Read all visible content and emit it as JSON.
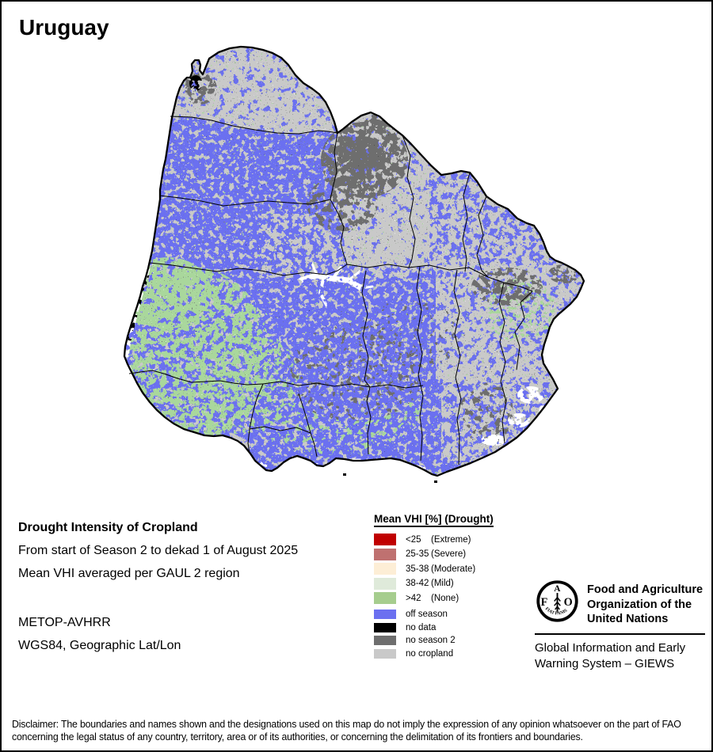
{
  "title": "Uruguay",
  "info": {
    "heading": "Drought Intensity of Cropland",
    "period": "From start of Season 2 to dekad 1 of August 2025",
    "aggregation": "Mean VHI averaged per GAUL 2 region",
    "sensor": "METOP-AVHRR",
    "projection": "WGS84, Geographic Lat/Lon"
  },
  "legend": {
    "title": "Mean VHI [%] (Drought)",
    "drought_classes": [
      {
        "range": "<25",
        "label": "(Extreme)",
        "color": "#c00000"
      },
      {
        "range": "25-35",
        "label": "(Severe)",
        "color": "#bf7170"
      },
      {
        "range": "35-38",
        "label": "(Moderate)",
        "color": "#fdeed6"
      },
      {
        "range": "38-42",
        "label": "(Mild)",
        "color": "#dfeada"
      },
      {
        "range": ">42",
        "label": "(None)",
        "color": "#a6cd8e"
      }
    ],
    "season_classes": [
      {
        "label": "off season",
        "color": "#6b70f0"
      },
      {
        "label": "no data",
        "color": "#000000"
      },
      {
        "label": "no season 2",
        "color": "#6e6e6e"
      },
      {
        "label": "no cropland",
        "color": "#c9c9c9"
      }
    ]
  },
  "fao": {
    "org_name_lines": [
      "Food and Agriculture",
      "Organization of the",
      "United Nations"
    ],
    "giews_lines": [
      "Global Information and Early",
      "Warning System – GIEWS"
    ],
    "logo": {
      "f": "F",
      "a": "A",
      "o": "O",
      "motto": "FIAT PANIS"
    }
  },
  "disclaimer": {
    "line1": "Disclaimer: The boundaries and names shown and the designations used on this map do not imply the expression of any opinion whatsoever on the part of FAO",
    "line2": "concerning the legal status of any country, territory, area or of its authorities, or concerning the delimitation of its frontiers and boundaries."
  },
  "map": {
    "region": "Uruguay",
    "colors": {
      "off_season": "#6b70f0",
      "no_cropland": "#c9c9c9",
      "no_season2": "#6e6e6e",
      "vhi_none_green": "#a9d79c",
      "no_data_black": "#000000",
      "water_white": "#ffffff"
    }
  }
}
